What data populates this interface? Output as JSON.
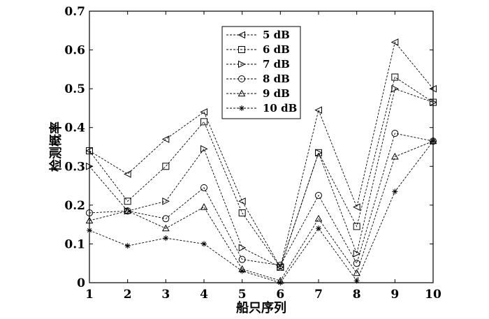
{
  "chart_data": {
    "type": "line",
    "xlabel": "船只序列",
    "ylabel": "检测概率",
    "xlim": [
      1,
      10
    ],
    "ylim": [
      0,
      0.7
    ],
    "x": [
      1,
      2,
      3,
      4,
      5,
      6,
      7,
      8,
      9,
      10
    ],
    "xticks": [
      "1",
      "2",
      "3",
      "4",
      "5",
      "6",
      "7",
      "8",
      "9",
      "10"
    ],
    "yticks": [
      "0",
      "0.1",
      "0.2",
      "0.3",
      "0.4",
      "0.5",
      "0.6",
      "0.7"
    ],
    "grid": false,
    "legend_position": "top-center",
    "series": [
      {
        "name": "5 dB",
        "marker": "triangle-left",
        "values": [
          0.34,
          0.28,
          0.37,
          0.44,
          0.21,
          0.04,
          0.445,
          0.195,
          0.62,
          0.5
        ]
      },
      {
        "name": "6 dB",
        "marker": "square",
        "values": [
          0.34,
          0.21,
          0.3,
          0.415,
          0.18,
          0.04,
          0.335,
          0.145,
          0.53,
          0.465
        ]
      },
      {
        "name": "7 dB",
        "marker": "triangle-right",
        "values": [
          0.3,
          0.185,
          0.21,
          0.345,
          0.09,
          0.04,
          0.335,
          0.075,
          0.5,
          0.465
        ]
      },
      {
        "name": "8 dB",
        "marker": "circle",
        "values": [
          0.18,
          0.185,
          0.165,
          0.245,
          0.06,
          0.045,
          0.225,
          0.05,
          0.385,
          0.365
        ]
      },
      {
        "name": "9 dB",
        "marker": "triangle-up",
        "values": [
          0.16,
          0.185,
          0.14,
          0.195,
          0.035,
          0.005,
          0.165,
          0.025,
          0.325,
          0.365
        ]
      },
      {
        "name": "10 dB",
        "marker": "star",
        "values": [
          0.135,
          0.095,
          0.115,
          0.1,
          0.03,
          0.0,
          0.14,
          0.005,
          0.235,
          0.365
        ]
      }
    ]
  }
}
